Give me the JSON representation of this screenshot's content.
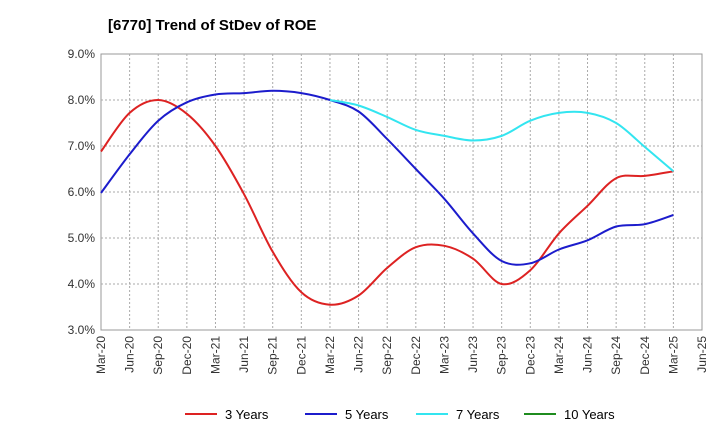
{
  "chart_data": {
    "type": "line",
    "title": "[6770]  Trend of StDev of ROE",
    "xlabel": "",
    "ylabel": "",
    "ylim": [
      3.0,
      9.0
    ],
    "yticks": [
      "3.0%",
      "4.0%",
      "5.0%",
      "6.0%",
      "7.0%",
      "8.0%",
      "9.0%"
    ],
    "ytick_values": [
      3,
      4,
      5,
      6,
      7,
      8,
      9
    ],
    "xticks": [
      "Mar-20",
      "Jun-20",
      "Sep-20",
      "Dec-20",
      "Mar-21",
      "Jun-21",
      "Sep-21",
      "Dec-21",
      "Mar-22",
      "Jun-22",
      "Sep-22",
      "Dec-22",
      "Mar-23",
      "Jun-23",
      "Sep-23",
      "Dec-23",
      "Mar-24",
      "Jun-24",
      "Sep-24",
      "Dec-24",
      "Mar-25",
      "Jun-25"
    ],
    "grid": true,
    "legend_position": "bottom",
    "series": [
      {
        "name": "3 Years",
        "color": "#dd2222",
        "x": [
          "Mar-20",
          "Jun-20",
          "Sep-20",
          "Dec-20",
          "Mar-21",
          "Jun-21",
          "Sep-21",
          "Dec-21",
          "Mar-22",
          "Jun-22",
          "Sep-22",
          "Dec-22",
          "Mar-23",
          "Jun-23",
          "Sep-23",
          "Dec-23",
          "Mar-24",
          "Jun-24",
          "Sep-24",
          "Dec-24",
          "Mar-25"
        ],
        "values": [
          6.88,
          7.72,
          8.0,
          7.7,
          7.0,
          5.95,
          4.7,
          3.82,
          3.55,
          3.75,
          4.35,
          4.8,
          4.83,
          4.55,
          4.0,
          4.3,
          5.1,
          5.7,
          6.3,
          6.35,
          6.45
        ]
      },
      {
        "name": "5 Years",
        "color": "#1c1ccc",
        "x": [
          "Mar-20",
          "Jun-20",
          "Sep-20",
          "Dec-20",
          "Mar-21",
          "Jun-21",
          "Sep-21",
          "Dec-21",
          "Mar-22",
          "Jun-22",
          "Sep-22",
          "Dec-22",
          "Mar-23",
          "Jun-23",
          "Sep-23",
          "Dec-23",
          "Mar-24",
          "Jun-24",
          "Sep-24",
          "Dec-24",
          "Mar-25"
        ],
        "values": [
          5.98,
          6.82,
          7.55,
          7.95,
          8.12,
          8.15,
          8.2,
          8.15,
          8.0,
          7.75,
          7.15,
          6.5,
          5.85,
          5.1,
          4.5,
          4.45,
          4.75,
          4.95,
          5.25,
          5.3,
          5.5
        ]
      },
      {
        "name": "7 Years",
        "color": "#33e5f0",
        "x": [
          "Mar-22",
          "Jun-22",
          "Sep-22",
          "Dec-22",
          "Mar-23",
          "Jun-23",
          "Sep-23",
          "Dec-23",
          "Mar-24",
          "Jun-24",
          "Sep-24",
          "Dec-24",
          "Mar-25"
        ],
        "values": [
          8.0,
          7.88,
          7.63,
          7.35,
          7.22,
          7.12,
          7.22,
          7.55,
          7.72,
          7.72,
          7.5,
          6.98,
          6.45
        ]
      },
      {
        "name": "10 Years",
        "color": "#1f8c1f",
        "x": [],
        "values": []
      }
    ]
  }
}
